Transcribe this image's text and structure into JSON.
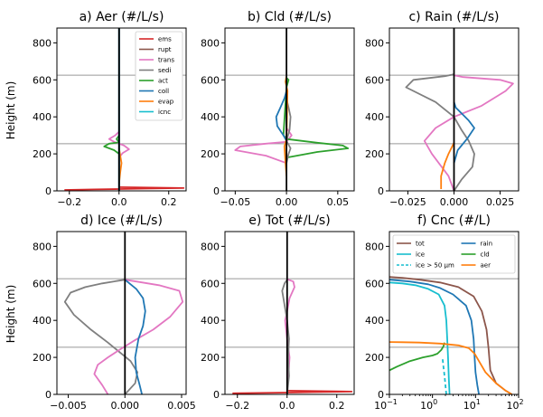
{
  "figure": {
    "ylabel": "Height (m)"
  },
  "chart_data": [
    {
      "id": "aer",
      "type": "line",
      "title": "a) Aer (#/L/s)",
      "xlim": [
        -0.25,
        0.27
      ],
      "ylim": [
        0,
        880
      ],
      "xticks": [
        -0.2,
        0.0,
        0.2
      ],
      "xticklabels": [
        "−0.2",
        "0.0",
        "0.2"
      ],
      "yticks": [
        0,
        200,
        400,
        600,
        800
      ],
      "yticklabels": [
        "0",
        "200",
        "400",
        "600",
        "800"
      ],
      "hlines": [
        255,
        625
      ],
      "legend": {
        "position": "top-right",
        "columns": 1,
        "entries": [
          {
            "name": "ems",
            "color": "#d62728"
          },
          {
            "name": "rupt",
            "color": "#8c564b"
          },
          {
            "name": "trans",
            "color": "#e377c2"
          },
          {
            "name": "sedi",
            "color": "#7f7f7f"
          },
          {
            "name": "act",
            "color": "#2ca02c"
          },
          {
            "name": "coll",
            "color": "#1f77b4"
          },
          {
            "name": "evap",
            "color": "#ff7f0e"
          },
          {
            "name": "icnc",
            "color": "#17becf"
          }
        ]
      },
      "series": [
        {
          "color": "#d62728",
          "x": [
            -0.22,
            -0.1,
            0,
            0.1,
            0.26,
            0.0
          ],
          "y": [
            5,
            8,
            10,
            12,
            15,
            20
          ]
        },
        {
          "color": "#8c564b",
          "x": [
            0.0,
            0.0,
            0.0
          ],
          "y": [
            0,
            400,
            880
          ]
        },
        {
          "color": "#e377c2",
          "x": [
            0,
            0.015,
            0.04,
            0.02,
            0,
            -0.02,
            -0.04,
            -0.015,
            0
          ],
          "y": [
            180,
            205,
            225,
            245,
            255,
            265,
            280,
            300,
            320
          ]
        },
        {
          "color": "#2ca02c",
          "x": [
            0,
            -0.02,
            -0.06,
            -0.04,
            0,
            -0.01,
            0
          ],
          "y": [
            200,
            220,
            240,
            255,
            262,
            280,
            300
          ]
        },
        {
          "color": "#ff7f0e",
          "x": [
            0,
            0.005,
            0.01,
            0.005,
            0
          ],
          "y": [
            40,
            100,
            150,
            190,
            230
          ]
        },
        {
          "color": "#17becf",
          "x": [
            0,
            0,
            0
          ],
          "y": [
            0,
            400,
            880
          ]
        },
        {
          "color": "#1f77b4",
          "x": [
            0,
            0,
            0
          ],
          "y": [
            0,
            400,
            880
          ]
        },
        {
          "color": "#000000",
          "x": [
            0,
            0
          ],
          "y": [
            0,
            880
          ]
        }
      ]
    },
    {
      "id": "cld",
      "type": "line",
      "title": "b) Cld (#/L/s)",
      "xlim": [
        -0.06,
        0.066
      ],
      "ylim": [
        0,
        880
      ],
      "xticks": [
        -0.05,
        0.0,
        0.05
      ],
      "xticklabels": [
        "−0.05",
        "0.00",
        "0.05"
      ],
      "yticks": [
        0,
        200,
        400,
        600,
        800
      ],
      "yticklabels": [
        "0",
        "200",
        "400",
        "600",
        "800"
      ],
      "hlines": [
        255,
        625
      ],
      "series": [
        {
          "color": "#e377c2",
          "x": [
            0,
            -0.02,
            -0.05,
            -0.045,
            -0.02,
            0,
            0.005,
            0
          ],
          "y": [
            150,
            190,
            220,
            240,
            255,
            265,
            300,
            340
          ]
        },
        {
          "color": "#2ca02c",
          "x": [
            0,
            0.03,
            0.06,
            0.055,
            0.03,
            0,
            -0.003,
            0,
            0.002,
            0
          ],
          "y": [
            180,
            210,
            230,
            245,
            260,
            280,
            300,
            560,
            600,
            610
          ]
        },
        {
          "color": "#1f77b4",
          "x": [
            0,
            -0.003,
            -0.009,
            -0.01,
            -0.006,
            -0.002,
            0
          ],
          "y": [
            270,
            300,
            350,
            400,
            450,
            500,
            540
          ]
        },
        {
          "color": "#7f7f7f",
          "x": [
            0,
            0.002,
            0.004,
            0.002,
            0,
            0.003,
            0.004,
            0.002,
            0
          ],
          "y": [
            150,
            200,
            230,
            250,
            270,
            330,
            400,
            450,
            500
          ]
        },
        {
          "color": "#ff7f0e",
          "x": [
            0,
            -0.001,
            -0.002,
            0,
            0.001,
            -0.001,
            0
          ],
          "y": [
            80,
            150,
            240,
            280,
            540,
            590,
            620
          ]
        },
        {
          "color": "#000000",
          "x": [
            0,
            0
          ],
          "y": [
            0,
            880
          ]
        }
      ]
    },
    {
      "id": "rain",
      "type": "line",
      "title": "c) Rain (#/L/s)",
      "xlim": [
        -0.035,
        0.035
      ],
      "ylim": [
        0,
        880
      ],
      "xticks": [
        -0.025,
        0.0,
        0.025
      ],
      "xticklabels": [
        "−0.025",
        "0.000",
        "0.025"
      ],
      "yticks": [
        0,
        200,
        400,
        600,
        800
      ],
      "yticklabels": [
        "0",
        "200",
        "400",
        "600",
        "800"
      ],
      "hlines": [
        255,
        625
      ],
      "series": [
        {
          "color": "#7f7f7f",
          "x": [
            0,
            0.004,
            0.01,
            0.011,
            0.008,
            0.004,
            0.0,
            -0.01,
            -0.026,
            -0.022,
            -0.005,
            0
          ],
          "y": [
            0,
            60,
            130,
            200,
            270,
            330,
            400,
            480,
            560,
            600,
            620,
            630
          ]
        },
        {
          "color": "#e377c2",
          "x": [
            0,
            -0.003,
            -0.012,
            -0.016,
            -0.01,
            0.0,
            0.015,
            0.028,
            0.032,
            0.025,
            0.005,
            0
          ],
          "y": [
            0,
            80,
            200,
            270,
            340,
            400,
            460,
            540,
            580,
            600,
            615,
            625
          ]
        },
        {
          "color": "#1f77b4",
          "x": [
            0,
            0.002,
            0.007,
            0.011,
            0.008,
            0.004,
            0.001,
            0
          ],
          "y": [
            150,
            220,
            280,
            340,
            380,
            420,
            450,
            480
          ]
        },
        {
          "color": "#ff7f0e",
          "x": [
            -0.007,
            -0.007,
            -0.005,
            -0.003,
            -0.001,
            0
          ],
          "y": [
            10,
            80,
            150,
            200,
            240,
            260
          ]
        },
        {
          "color": "#000000",
          "x": [
            0,
            0
          ],
          "y": [
            0,
            880
          ]
        }
      ]
    },
    {
      "id": "ice",
      "type": "line",
      "title": "d) Ice (#/L/s)",
      "xlim": [
        -0.006,
        0.0054
      ],
      "ylim": [
        0,
        880
      ],
      "xticks": [
        -0.005,
        0.0,
        0.005
      ],
      "xticklabels": [
        "−0.005",
        "0.000",
        "0.005"
      ],
      "yticks": [
        0,
        200,
        400,
        600,
        800
      ],
      "yticklabels": [
        "0",
        "200",
        "400",
        "600",
        "800"
      ],
      "hlines": [
        255,
        625
      ],
      "series": [
        {
          "color": "#7f7f7f",
          "x": [
            0,
            0.0009,
            0.0011,
            0.0005,
            -0.0005,
            -0.0015,
            -0.003,
            -0.0045,
            -0.0053,
            -0.0048,
            -0.0035,
            -0.002,
            -0.0005,
            0
          ],
          "y": [
            0,
            60,
            120,
            180,
            230,
            280,
            350,
            430,
            500,
            550,
            580,
            600,
            615,
            620
          ]
        },
        {
          "color": "#e377c2",
          "x": [
            -0.0015,
            -0.002,
            -0.0027,
            -0.0024,
            -0.0015,
            -0.0005,
            0.0008,
            0.0025,
            0.004,
            0.0051,
            0.0048,
            0.003,
            0.001,
            0
          ],
          "y": [
            0,
            50,
            110,
            160,
            200,
            240,
            290,
            350,
            420,
            500,
            560,
            590,
            610,
            620
          ]
        },
        {
          "color": "#1f77b4",
          "x": [
            0.0015,
            0.0013,
            0.001,
            0.0009,
            0.0012,
            0.0016,
            0.0018,
            0.0016,
            0.001,
            0.0004,
            0
          ],
          "y": [
            0,
            50,
            120,
            200,
            300,
            370,
            450,
            520,
            570,
            600,
            620
          ]
        },
        {
          "color": "#000000",
          "x": [
            0,
            0
          ],
          "y": [
            0,
            880
          ]
        }
      ]
    },
    {
      "id": "tot",
      "type": "line",
      "title": "e) Tot (#/L/s)",
      "xlim": [
        -0.25,
        0.27
      ],
      "ylim": [
        0,
        880
      ],
      "xticks": [
        -0.2,
        0.0,
        0.2
      ],
      "xticklabels": [
        "−0.2",
        "0.0",
        "0.2"
      ],
      "yticks": [
        0,
        200,
        400,
        600,
        800
      ],
      "yticklabels": [
        "0",
        "200",
        "400",
        "600",
        "800"
      ],
      "hlines": [
        255,
        625
      ],
      "series": [
        {
          "color": "#d62728",
          "x": [
            -0.22,
            0,
            0.1,
            0.26,
            0
          ],
          "y": [
            6,
            10,
            12,
            15,
            20
          ]
        },
        {
          "color": "#e377c2",
          "x": [
            0,
            0.01,
            0,
            -0.008,
            0,
            0.01,
            0.03,
            0.025,
            0.005,
            0
          ],
          "y": [
            0,
            200,
            300,
            400,
            450,
            520,
            580,
            610,
            620,
            625
          ]
        },
        {
          "color": "#7f7f7f",
          "x": [
            0,
            0.008,
            0.004,
            0.008,
            0,
            -0.02,
            -0.01,
            0
          ],
          "y": [
            0,
            100,
            200,
            300,
            400,
            560,
            600,
            620
          ]
        },
        {
          "color": "#000000",
          "x": [
            0,
            0
          ],
          "y": [
            0,
            880
          ]
        }
      ]
    },
    {
      "id": "cnc",
      "type": "line",
      "title": "f) Cnc (#/L)",
      "xscale": "log",
      "xlim": [
        0.1,
        100
      ],
      "ylim": [
        0,
        880
      ],
      "xticks": [
        0.1,
        1,
        10,
        100
      ],
      "xticklabels": [
        "10",
        "10",
        "10",
        "10"
      ],
      "xtickexponents": [
        "−1",
        "0",
        "1",
        "2"
      ],
      "yticks": [
        0,
        200,
        400,
        600,
        800
      ],
      "yticklabels": [
        "0",
        "200",
        "400",
        "600",
        "800"
      ],
      "hlines": [
        255,
        625
      ],
      "legend": {
        "position": "top",
        "columns": 2,
        "entries": [
          {
            "name": "tot",
            "color": "#8c564b"
          },
          {
            "name": "rain",
            "color": "#1f77b4"
          },
          {
            "name": "ice",
            "color": "#17becf"
          },
          {
            "name": "cld",
            "color": "#2ca02c"
          },
          {
            "name": "ice > 50 μm",
            "color": "#17becf",
            "dash": true
          },
          {
            "name": "aer",
            "color": "#ff7f0e"
          }
        ]
      },
      "series": [
        {
          "color": "#8c564b",
          "x": [
            70,
            50,
            30,
            22,
            20,
            18,
            14,
            9,
            4,
            1.5,
            0.5,
            0.2,
            0.1
          ],
          "y": [
            0,
            20,
            60,
            130,
            250,
            350,
            450,
            530,
            580,
            605,
            620,
            630,
            635
          ]
        },
        {
          "color": "#1f77b4",
          "x": [
            12,
            11,
            10,
            9.5,
            9,
            8,
            6,
            3,
            1.5,
            0.8,
            0.3,
            0.1
          ],
          "y": [
            0,
            50,
            120,
            200,
            300,
            400,
            480,
            540,
            575,
            595,
            610,
            620
          ]
        },
        {
          "color": "#17becf",
          "x": [
            2.5,
            2.4,
            2.3,
            2.2,
            2.1,
            1.9,
            1.4,
            0.8,
            0.4,
            0.2,
            0.1
          ],
          "y": [
            0,
            80,
            200,
            300,
            400,
            480,
            540,
            570,
            590,
            600,
            605
          ]
        },
        {
          "color": "#17becf",
          "dash": true,
          "x": [
            2.1,
            2.0,
            1.9,
            1.8,
            1.7
          ],
          "y": [
            0,
            50,
            100,
            150,
            200
          ]
        },
        {
          "color": "#2ca02c",
          "x": [
            0.1,
            0.15,
            0.3,
            0.6,
            1.0,
            1.3,
            1.6,
            1.8,
            1.9
          ],
          "y": [
            130,
            150,
            180,
            200,
            210,
            220,
            240,
            260,
            280
          ]
        },
        {
          "color": "#ff7f0e",
          "x": [
            70,
            50,
            30,
            17,
            12,
            9.5,
            7,
            4,
            1.5,
            0.5,
            0.2,
            0.1
          ],
          "y": [
            0,
            20,
            60,
            120,
            180,
            220,
            250,
            265,
            275,
            280,
            282,
            283
          ]
        }
      ]
    }
  ]
}
